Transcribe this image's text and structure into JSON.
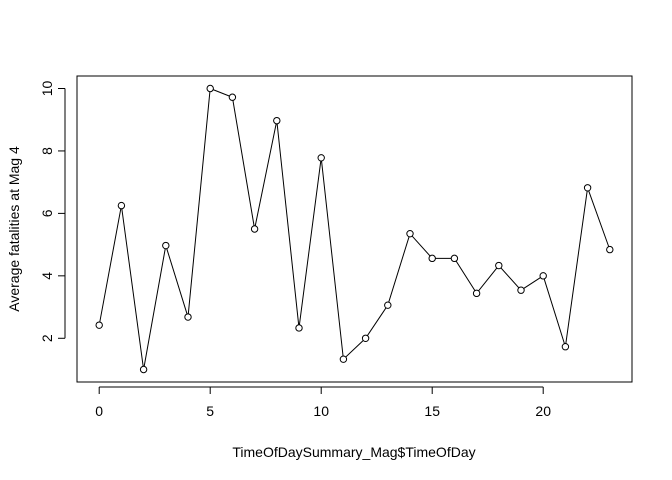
{
  "chart_data": {
    "type": "line",
    "title": "",
    "xlabel": "TimeOfDaySummary_Mag$TimeOfDay",
    "ylabel": "Average fatalities at Mag 4",
    "x": [
      0,
      1,
      2,
      3,
      4,
      5,
      6,
      7,
      8,
      9,
      10,
      11,
      12,
      13,
      14,
      15,
      16,
      17,
      18,
      19,
      20,
      21,
      22,
      23
    ],
    "series": [
      {
        "values": [
          2.42,
          6.25,
          1.0,
          4.97,
          2.68,
          10.0,
          9.72,
          5.5,
          8.97,
          2.33,
          7.78,
          1.33,
          2.0,
          3.06,
          5.35,
          4.56,
          4.56,
          3.44,
          4.33,
          3.54,
          4.0,
          1.73,
          6.82,
          4.84
        ],
        "marker": "open-circle",
        "color": "#000000"
      }
    ],
    "xlim": [
      -1.0,
      24.0
    ],
    "ylim": [
      0.6,
      10.4
    ],
    "xticks": [
      0,
      5,
      10,
      15,
      20
    ],
    "xtick_labels": [
      "0",
      "5",
      "10",
      "15",
      "20"
    ],
    "yticks": [
      2,
      4,
      6,
      8,
      10
    ],
    "ytick_labels": [
      "2",
      "4",
      "6",
      "8",
      "10"
    ],
    "grid": false,
    "legend": "none"
  }
}
